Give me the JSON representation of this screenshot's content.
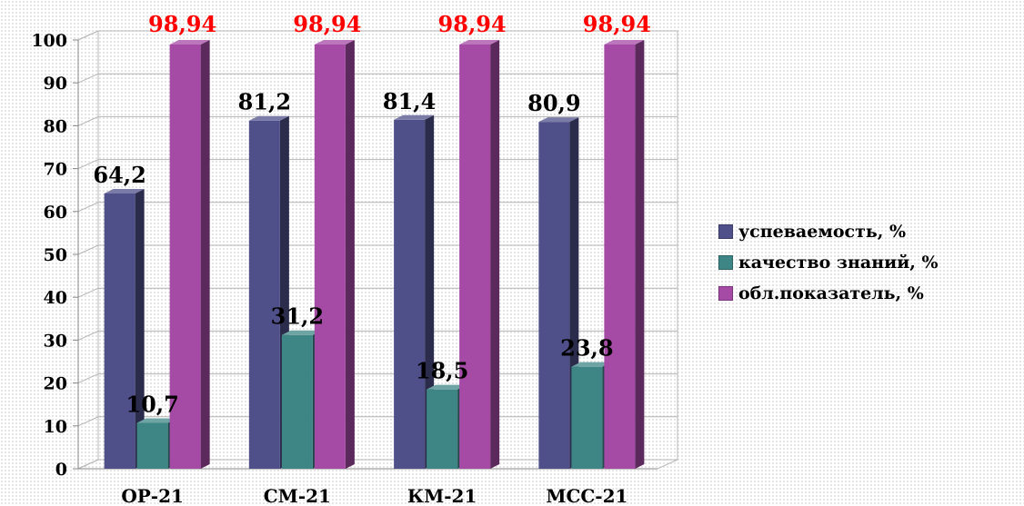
{
  "chart_data": {
    "type": "bar",
    "categories": [
      "ОР-21",
      "СМ-21",
      "КМ-21",
      "МСС-21"
    ],
    "series": [
      {
        "name": "успеваемость, %",
        "color": "#4f4f8a",
        "labels": [
          "64,2",
          "81,2",
          "81,4",
          "80,9"
        ],
        "values": [
          64.2,
          81.2,
          81.4,
          80.9
        ]
      },
      {
        "name": "качество знаний, %",
        "color": "#3e8586",
        "labels": [
          "10,7",
          "31,2",
          "18,5",
          "23,8"
        ],
        "values": [
          10.7,
          31.2,
          18.5,
          23.8
        ]
      },
      {
        "name": "обл.показатель, %",
        "color": "#a54aa5",
        "labels": [
          "98,94",
          "98,94",
          "98,94",
          "98,94"
        ],
        "values": [
          98.94,
          98.94,
          98.94,
          98.94
        ]
      }
    ],
    "ylim": [
      0,
      100
    ],
    "yticks": [
      "0",
      "10",
      "20",
      "30",
      "40",
      "50",
      "60",
      "70",
      "80",
      "90",
      "100"
    ],
    "grid": true,
    "legend": "right",
    "label_colors": [
      "#000000",
      "#000000",
      "#ff0000"
    ]
  }
}
